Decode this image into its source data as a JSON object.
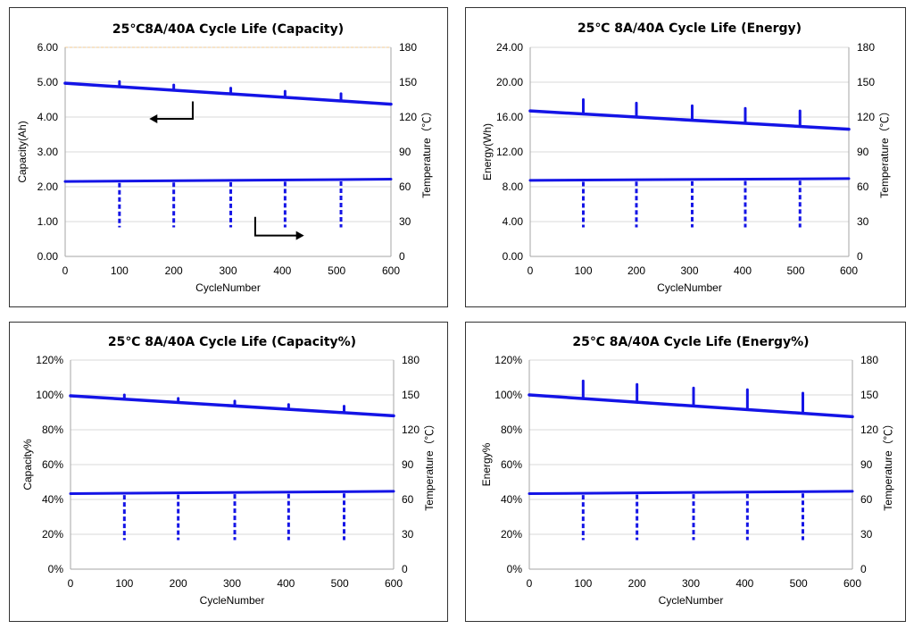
{
  "chart_data": [
    {
      "type": "line",
      "title": "25℃8A/40A Cycle Life (Capacity)",
      "xlabel": "CycleNumber",
      "ylabel": "Capacity(Ah)",
      "y2label": "Temperature（℃）",
      "xlim": [
        0,
        600
      ],
      "ylim": [
        0,
        6
      ],
      "y2lim": [
        0,
        180
      ],
      "xticks": [
        "0",
        "100",
        "200",
        "300",
        "400",
        "500",
        "600"
      ],
      "yticks": [
        "0.00",
        "1.00",
        "2.00",
        "3.00",
        "4.00",
        "5.00",
        "6.00"
      ],
      "y2ticks": [
        "0",
        "30",
        "60",
        "90",
        "120",
        "150",
        "180"
      ],
      "dashed_plot_border": true,
      "has_arrows": true,
      "series": [
        {
          "name": "Capacity",
          "axis": "left",
          "x": [
            0,
            600
          ],
          "y": [
            4.97,
            4.37
          ],
          "spikes": [
            {
              "x": 100,
              "top": 5.02
            },
            {
              "x": 200,
              "top": 4.92
            },
            {
              "x": 305,
              "top": 4.83
            },
            {
              "x": 405,
              "top": 4.74
            },
            {
              "x": 508,
              "top": 4.67
            }
          ]
        },
        {
          "name": "Temperature",
          "axis": "right",
          "x": [
            0,
            600
          ],
          "y": [
            64.5,
            66.5
          ],
          "dips": [
            {
              "x": 100,
              "bottom": 25
            },
            {
              "x": 200,
              "bottom": 25
            },
            {
              "x": 305,
              "bottom": 25
            },
            {
              "x": 405,
              "bottom": 25
            },
            {
              "x": 508,
              "bottom": 25
            }
          ]
        }
      ]
    },
    {
      "type": "line",
      "title": "25℃ 8A/40A Cycle Life (Energy)",
      "xlabel": "CycleNumber",
      "ylabel": "Energy(Wh)",
      "y2label": "Temperature（℃）",
      "xlim": [
        0,
        600
      ],
      "ylim": [
        0,
        24
      ],
      "y2lim": [
        0,
        180
      ],
      "xticks": [
        "0",
        "100",
        "200",
        "300",
        "400",
        "500",
        "600"
      ],
      "yticks": [
        "0.00",
        "4.00",
        "8.00",
        "12.00",
        "16.00",
        "20.00",
        "24.00"
      ],
      "y2ticks": [
        "0",
        "30",
        "60",
        "90",
        "120",
        "150",
        "180"
      ],
      "dashed_plot_border": false,
      "has_arrows": false,
      "series": [
        {
          "name": "Energy",
          "axis": "left",
          "x": [
            0,
            600
          ],
          "y": [
            16.7,
            14.6
          ],
          "spikes": [
            {
              "x": 100,
              "top": 18.0
            },
            {
              "x": 200,
              "top": 17.6
            },
            {
              "x": 305,
              "top": 17.3
            },
            {
              "x": 405,
              "top": 17.0
            },
            {
              "x": 508,
              "top": 16.7
            }
          ]
        },
        {
          "name": "Temperature",
          "axis": "right",
          "x": [
            0,
            600
          ],
          "y": [
            65.5,
            67
          ],
          "dips": [
            {
              "x": 100,
              "bottom": 25
            },
            {
              "x": 200,
              "bottom": 25
            },
            {
              "x": 305,
              "bottom": 25
            },
            {
              "x": 405,
              "bottom": 25
            },
            {
              "x": 508,
              "bottom": 25
            }
          ]
        }
      ]
    },
    {
      "type": "line",
      "title": "25℃ 8A/40A Cycle Life (Capacity%)",
      "xlabel": "CycleNumber",
      "ylabel": "Capacity%",
      "y2label": "Temperature（℃）",
      "xlim": [
        0,
        600
      ],
      "ylim": [
        0,
        1.2
      ],
      "y2lim": [
        0,
        180
      ],
      "xticks": [
        "0",
        "100",
        "200",
        "300",
        "400",
        "500",
        "600"
      ],
      "yticks": [
        "0%",
        "20%",
        "40%",
        "60%",
        "80%",
        "100%",
        "120%"
      ],
      "y2ticks": [
        "0",
        "30",
        "60",
        "90",
        "120",
        "150",
        "180"
      ],
      "dashed_plot_border": false,
      "has_arrows": false,
      "series": [
        {
          "name": "Capacity%",
          "axis": "left",
          "x": [
            0,
            600
          ],
          "y": [
            0.995,
            0.88
          ],
          "spikes": [
            {
              "x": 100,
              "top": 1.0
            },
            {
              "x": 200,
              "top": 0.98
            },
            {
              "x": 305,
              "top": 0.965
            },
            {
              "x": 405,
              "top": 0.945
            },
            {
              "x": 508,
              "top": 0.935
            }
          ]
        },
        {
          "name": "Temperature",
          "axis": "right",
          "x": [
            0,
            600
          ],
          "y": [
            65,
            67
          ],
          "dips": [
            {
              "x": 100,
              "bottom": 25
            },
            {
              "x": 200,
              "bottom": 25
            },
            {
              "x": 305,
              "bottom": 25
            },
            {
              "x": 405,
              "bottom": 25
            },
            {
              "x": 508,
              "bottom": 25
            }
          ]
        }
      ]
    },
    {
      "type": "line",
      "title": "25℃ 8A/40A Cycle Life (Energy%)",
      "xlabel": "CycleNumber",
      "ylabel": "Energy%",
      "y2label": "Temperature（℃）",
      "xlim": [
        0,
        600
      ],
      "ylim": [
        0,
        1.2
      ],
      "y2lim": [
        0,
        180
      ],
      "xticks": [
        "0",
        "100",
        "200",
        "300",
        "400",
        "500",
        "600"
      ],
      "yticks": [
        "0%",
        "20%",
        "40%",
        "60%",
        "80%",
        "100%",
        "120%"
      ],
      "y2ticks": [
        "0",
        "30",
        "60",
        "90",
        "120",
        "150",
        "180"
      ],
      "dashed_plot_border": false,
      "has_arrows": false,
      "series": [
        {
          "name": "Energy%",
          "axis": "left",
          "x": [
            0,
            600
          ],
          "y": [
            1.0,
            0.875
          ],
          "spikes": [
            {
              "x": 100,
              "top": 1.08
            },
            {
              "x": 200,
              "top": 1.06
            },
            {
              "x": 305,
              "top": 1.04
            },
            {
              "x": 405,
              "top": 1.03
            },
            {
              "x": 508,
              "top": 1.01
            }
          ]
        },
        {
          "name": "Temperature",
          "axis": "right",
          "x": [
            0,
            600
          ],
          "y": [
            65,
            67
          ],
          "dips": [
            {
              "x": 100,
              "bottom": 25
            },
            {
              "x": 200,
              "bottom": 25
            },
            {
              "x": 305,
              "bottom": 25
            },
            {
              "x": 405,
              "bottom": 25
            },
            {
              "x": 508,
              "bottom": 25
            }
          ]
        }
      ]
    }
  ],
  "colors": {
    "series": "#1414e6",
    "grid": "#d9d9d9",
    "axis": "#a6a6a6",
    "dashed_border": "#f0c890"
  }
}
